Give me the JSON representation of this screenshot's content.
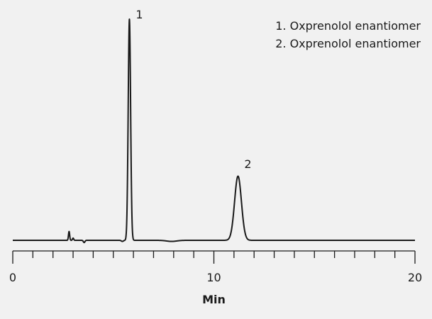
{
  "chart_data": {
    "type": "line",
    "title": "",
    "xlabel": "Min",
    "ylabel": "",
    "xlim": [
      0,
      20
    ],
    "ylim": [
      0,
      1
    ],
    "x_ticks": [
      "0",
      "10",
      "20"
    ],
    "x_minor_tick_step": 1,
    "grid": false,
    "legend_position": "top-right",
    "legend": [
      "1. Oxprenolol enantiomer",
      "2. Oxprenolol enantiomer"
    ],
    "peaks": [
      {
        "label": "1",
        "retention_time": 5.8,
        "height": 1.0,
        "width": 0.06
      },
      {
        "label": "2",
        "retention_time": 11.2,
        "height": 0.29,
        "width": 0.17
      }
    ],
    "baseline_features": [
      {
        "time": 2.8,
        "height": 0.04,
        "width": 0.03
      },
      {
        "time": 3.0,
        "height": 0.01,
        "width": 0.03
      },
      {
        "time": 3.55,
        "height": -0.01,
        "width": 0.04
      },
      {
        "time": 5.45,
        "height": -0.005,
        "width": 0.05
      },
      {
        "time": 7.9,
        "height": -0.005,
        "width": 0.25
      }
    ],
    "line_color": "#1a1a1a"
  }
}
